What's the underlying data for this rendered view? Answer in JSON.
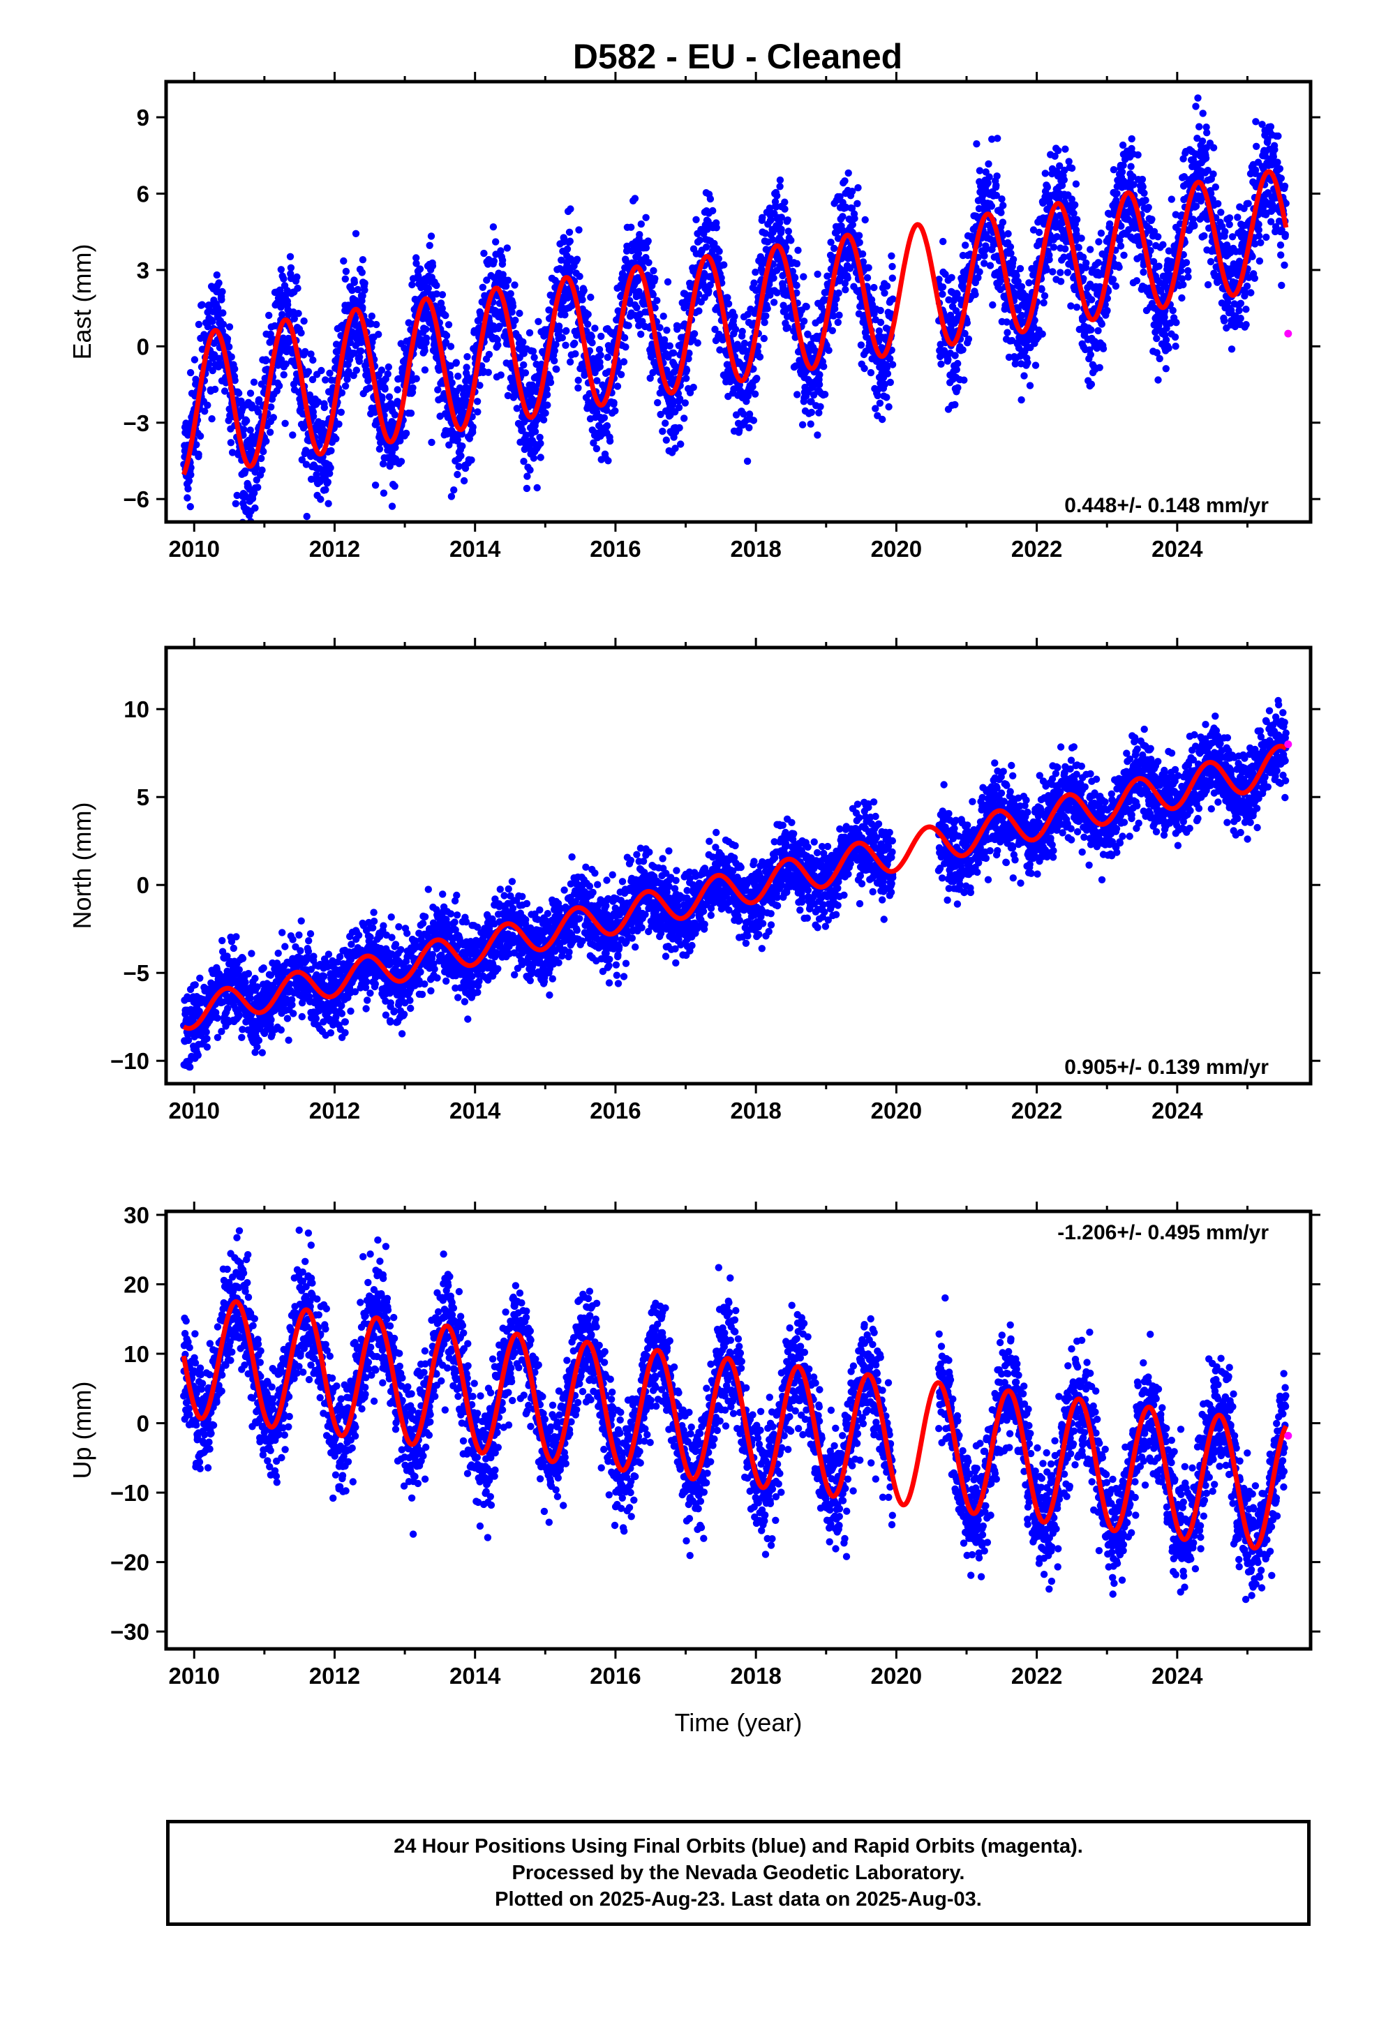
{
  "title": "D582  - EU - Cleaned",
  "footer": {
    "line1": "24 Hour Positions Using Final Orbits (blue) and Rapid Orbits (magenta).",
    "line2": "Processed by the Nevada Geodetic Laboratory.",
    "line3": "Plotted on 2025-Aug-23. Last data on 2025-Aug-03."
  },
  "colors": {
    "final_orbits": "#0000ff",
    "rapid_orbits": "#ff00ff",
    "model": "#ff0000",
    "frame": "#000000"
  },
  "chart_data": [
    {
      "type": "scatter",
      "ylabel": "East (mm)",
      "xlabel": "",
      "xlim": [
        2009.6,
        2025.9
      ],
      "ylim": [
        -6.9,
        10.4
      ],
      "xticks": [
        "2010",
        "2012",
        "2014",
        "2016",
        "2018",
        "2020",
        "2022",
        "2024"
      ],
      "yticks": [
        "-6",
        "-3",
        "0",
        "3",
        "6",
        "9"
      ],
      "rate_label": "0.448+/- 0.148 mm/yr",
      "rate_position": "bottom-right",
      "gap": [
        2019.95,
        2020.6
      ],
      "model": {
        "intercept_at_2010": -2.3,
        "rate": 0.448,
        "amplitude_start": 2.8,
        "amplitude_end": 2.3,
        "phase_peak": 0.3
      },
      "series": [
        {
          "name": "Final Orbits (blue)",
          "x_start": 2009.85,
          "x_end": 2025.55,
          "noise": 1.2
        },
        {
          "name": "Rapid Orbits (magenta)",
          "points": [
            [
              2025.58,
              0.5
            ]
          ]
        }
      ]
    },
    {
      "type": "scatter",
      "ylabel": "North (mm)",
      "xlabel": "",
      "xlim": [
        2009.6,
        2025.9
      ],
      "ylim": [
        -11.3,
        13.5
      ],
      "xticks": [
        "2010",
        "2012",
        "2014",
        "2016",
        "2018",
        "2020",
        "2022",
        "2024"
      ],
      "yticks": [
        "-10",
        "-5",
        "0",
        "5",
        "10"
      ],
      "rate_label": "0.905+/- 0.139 mm/yr",
      "rate_position": "bottom-right",
      "gap": [
        2019.95,
        2020.6
      ],
      "model": {
        "intercept_at_2010": -7.2,
        "rate": 0.905,
        "amplitude_start": 0.9,
        "amplitude_end": 1.1,
        "phase_peak": 0.45
      },
      "series": [
        {
          "name": "Final Orbits (blue)",
          "x_start": 2009.85,
          "x_end": 2025.55,
          "noise": 1.1
        },
        {
          "name": "Rapid Orbits (magenta)",
          "points": [
            [
              2025.58,
              8.0
            ]
          ]
        }
      ]
    },
    {
      "type": "scatter",
      "ylabel": "Up (mm)",
      "xlabel": "Time (year)",
      "xlim": [
        2009.6,
        2025.9
      ],
      "ylim": [
        -32.5,
        30.5
      ],
      "xticks": [
        "2010",
        "2012",
        "2014",
        "2016",
        "2018",
        "2020",
        "2022",
        "2024"
      ],
      "yticks": [
        "-30",
        "-20",
        "-10",
        "0",
        "10",
        "20",
        "30"
      ],
      "rate_label": "-1.206+/- 0.495 mm/yr",
      "rate_position": "top-right",
      "gap": [
        2019.95,
        2020.6
      ],
      "model": {
        "intercept_at_2010": 9.5,
        "rate": -1.206,
        "amplitude_start": 8.7,
        "amplitude_end": 9.3,
        "phase_peak": 0.6
      },
      "series": [
        {
          "name": "Final Orbits (blue)",
          "x_start": 2009.85,
          "x_end": 2025.55,
          "noise": 4.0
        },
        {
          "name": "Rapid Orbits (magenta)",
          "points": [
            [
              2025.58,
              -1.8
            ]
          ]
        }
      ]
    }
  ]
}
